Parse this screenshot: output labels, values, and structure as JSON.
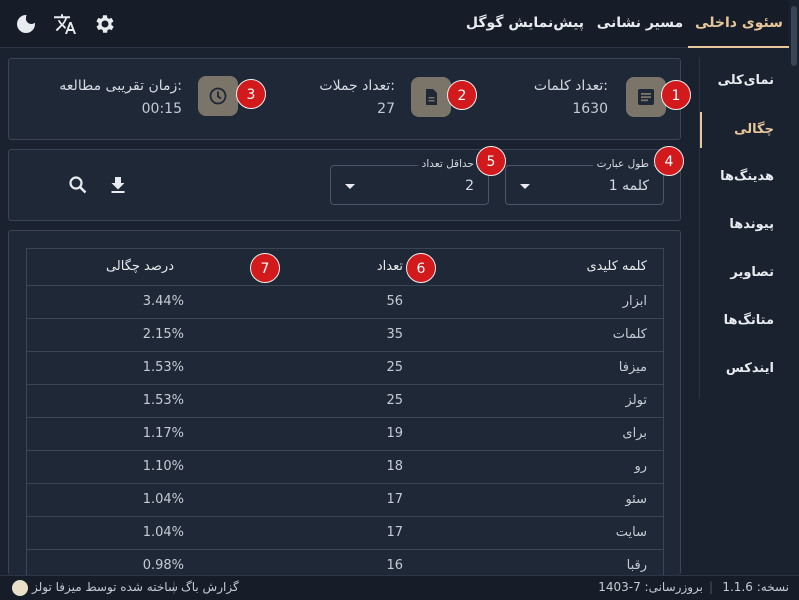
{
  "header": {
    "tabs": [
      {
        "label": "سئوی داخلی",
        "active": true
      },
      {
        "label": "مسیر نشانی",
        "active": false
      },
      {
        "label": "پیش‌نمایش گوگل",
        "active": false
      }
    ],
    "icons": [
      "gear-icon",
      "translate-icon",
      "moon-icon"
    ]
  },
  "sidebar": {
    "items": [
      {
        "label": "نمای‌کلی",
        "active": false
      },
      {
        "label": "چگالی",
        "active": true
      },
      {
        "label": "هدینگ‌ها",
        "active": false
      },
      {
        "label": "پیوندها",
        "active": false
      },
      {
        "label": "تصاویر",
        "active": false
      },
      {
        "label": "متاتگ‌ها",
        "active": false
      },
      {
        "label": "ایندکس",
        "active": false
      }
    ]
  },
  "stats": [
    {
      "label": "تعداد کلمات:",
      "value": "1630",
      "badge": "1",
      "icon": "article-icon"
    },
    {
      "label": "تعداد جملات:",
      "value": "27",
      "badge": "2",
      "icon": "document-icon"
    },
    {
      "label": "زمان تقریبی مطالعه:",
      "value": "00:15",
      "badge": "3",
      "icon": "clock-icon"
    }
  ],
  "filters": {
    "phrase_length": {
      "legend": "طول عبارت",
      "value": "1 کلمه",
      "badge": "4"
    },
    "min_count": {
      "legend": "حداقل تعداد",
      "value": "2",
      "badge": "5"
    },
    "icons": [
      "download-icon",
      "search-icon"
    ]
  },
  "table": {
    "headers": {
      "word": "کلمه کلیدی",
      "count": "تعداد",
      "percent": "درصد چگالی"
    },
    "header_badges": {
      "count": "6",
      "percent": "7"
    },
    "rows": [
      {
        "word": "ابزار",
        "count": "56",
        "percent": "3.44%"
      },
      {
        "word": "کلمات",
        "count": "35",
        "percent": "2.15%"
      },
      {
        "word": "میزفا",
        "count": "25",
        "percent": "1.53%"
      },
      {
        "word": "تولز",
        "count": "25",
        "percent": "1.53%"
      },
      {
        "word": "برای",
        "count": "19",
        "percent": "1.17%"
      },
      {
        "word": "رو",
        "count": "18",
        "percent": "1.10%"
      },
      {
        "word": "سئو",
        "count": "17",
        "percent": "1.04%"
      },
      {
        "word": "سایت",
        "count": "17",
        "percent": "1.04%"
      },
      {
        "word": "رقبا",
        "count": "16",
        "percent": "0.98%"
      }
    ]
  },
  "footer": {
    "version": "نسخه: 1.1.6",
    "updated": "بروزرسانی: 7-1403",
    "bug_report": "گزارش باگ",
    "made_by": "ساخته شده توسط میزفا تولز"
  },
  "colors": {
    "accent": "#e7c79a",
    "badge": "#d2191c",
    "background": "#1a2230",
    "panel": "#1f2837"
  }
}
